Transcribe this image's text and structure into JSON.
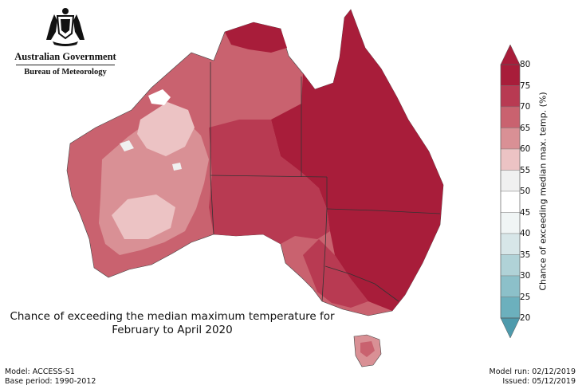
{
  "header": {
    "government": "Australian Government",
    "bureau": "Bureau of Meteorology"
  },
  "map": {
    "title_line1": "Chance of exceeding the median maximum temperature for",
    "title_line2": "February to April 2020",
    "legend_label": "Chance of exceeding median max. temp. (%)",
    "legend_ticks": [
      "80",
      "75",
      "70",
      "65",
      "60",
      "55",
      "50",
      "45",
      "40",
      "35",
      "30",
      "25",
      "20"
    ],
    "legend_colors": [
      "#a81d3a",
      "#b83a52",
      "#c9626f",
      "#d99095",
      "#ecc3c4",
      "#f0f0f0",
      "#ffffff",
      "#f0f5f5",
      "#d7e6e8",
      "#b0d2d7",
      "#8cc0c9",
      "#6cb0bd",
      "#4e9aac"
    ],
    "region_colors": {
      "very_high": "#a81d3a",
      "high": "#b83a52",
      "moderate": "#c9626f",
      "low": "#d99095",
      "near_neutral": "#ecc3c4"
    }
  },
  "footer": {
    "model": "Model: ACCESS-S1",
    "base_period": "Base period: 1990-2012",
    "model_run": "Model run: 02/12/2019",
    "issued": "Issued: 05/12/2019"
  }
}
